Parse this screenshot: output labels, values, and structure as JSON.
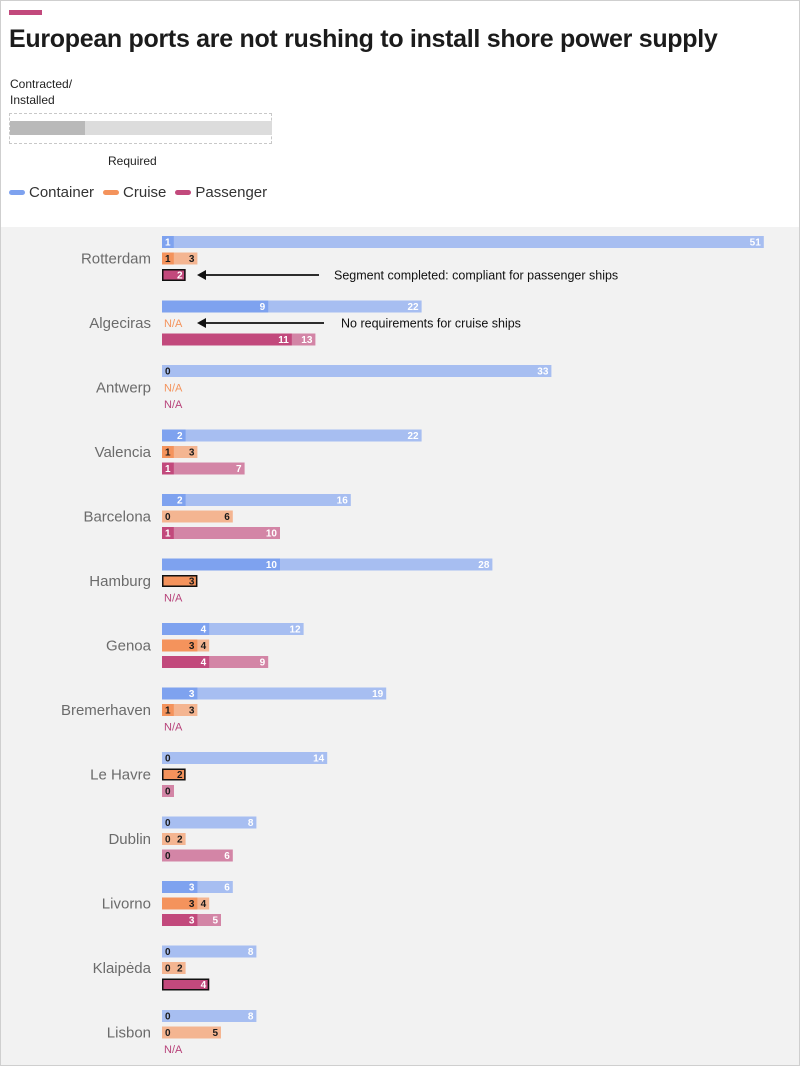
{
  "title": "European ports are not rushing to install shore power supply",
  "key": {
    "contracted_label_line1": "Contracted/",
    "contracted_label_line2": "Installed",
    "required_label": "Required"
  },
  "colors": {
    "accent": "#c2497c",
    "container": "#7ea2ef",
    "cruise": "#f4935c",
    "passenger": "#c2497c",
    "na_cruise": "#f4935c",
    "na_passenger": "#b8437a"
  },
  "annotations": [
    {
      "port": "Rotterdam",
      "series": "Passenger",
      "text": "Segment completed: compliant for passenger ships"
    },
    {
      "port": "Algeciras",
      "series": "Cruise",
      "text": "No requirements for cruise ships"
    }
  ],
  "chart_data": {
    "type": "bar",
    "title": "European ports are not rushing to install shore power supply",
    "legend_position": "top-left",
    "grid": false,
    "value_axis_range": [
      0,
      51
    ],
    "series_names": [
      "Container",
      "Cruise",
      "Passenger"
    ],
    "categories": [
      "Rotterdam",
      "Algeciras",
      "Antwerp",
      "Valencia",
      "Barcelona",
      "Hamburg",
      "Genoa",
      "Bremerhaven",
      "Le Havre",
      "Dublin",
      "Livorno",
      "Klaipėda",
      "Lisbon"
    ],
    "ports": [
      {
        "name": "Rotterdam",
        "container": {
          "installed": 1,
          "required": 51
        },
        "cruise": {
          "installed": 1,
          "required": 3
        },
        "passenger": {
          "installed": 2,
          "required": 2,
          "completed": true
        }
      },
      {
        "name": "Algeciras",
        "container": {
          "installed": 9,
          "required": 22
        },
        "cruise": {
          "na": true
        },
        "passenger": {
          "installed": 11,
          "required": 13
        }
      },
      {
        "name": "Antwerp",
        "container": {
          "installed": 0,
          "required": 33
        },
        "cruise": {
          "na": true
        },
        "passenger": {
          "na": true
        }
      },
      {
        "name": "Valencia",
        "container": {
          "installed": 2,
          "required": 22
        },
        "cruise": {
          "installed": 1,
          "required": 3
        },
        "passenger": {
          "installed": 1,
          "required": 7
        }
      },
      {
        "name": "Barcelona",
        "container": {
          "installed": 2,
          "required": 16
        },
        "cruise": {
          "installed": 0,
          "required": 6
        },
        "passenger": {
          "installed": 1,
          "required": 10
        }
      },
      {
        "name": "Hamburg",
        "container": {
          "installed": 10,
          "required": 28
        },
        "cruise": {
          "installed": 3,
          "required": 3,
          "completed": true
        },
        "passenger": {
          "na": true
        }
      },
      {
        "name": "Genoa",
        "container": {
          "installed": 4,
          "required": 12
        },
        "cruise": {
          "installed": 3,
          "required": 4
        },
        "passenger": {
          "installed": 4,
          "required": 9
        }
      },
      {
        "name": "Bremerhaven",
        "container": {
          "installed": 3,
          "required": 19
        },
        "cruise": {
          "installed": 1,
          "required": 3
        },
        "passenger": {
          "na": true
        }
      },
      {
        "name": "Le Havre",
        "container": {
          "installed": 0,
          "required": 14
        },
        "cruise": {
          "installed": 2,
          "required": 2,
          "completed": true
        },
        "passenger": {
          "installed": 0,
          "required": 0
        }
      },
      {
        "name": "Dublin",
        "container": {
          "installed": 0,
          "required": 8
        },
        "cruise": {
          "installed": 0,
          "required": 2
        },
        "passenger": {
          "installed": 0,
          "required": 6
        }
      },
      {
        "name": "Livorno",
        "container": {
          "installed": 3,
          "required": 6
        },
        "cruise": {
          "installed": 3,
          "required": 4
        },
        "passenger": {
          "installed": 3,
          "required": 5
        }
      },
      {
        "name": "Klaipėda",
        "container": {
          "installed": 0,
          "required": 8
        },
        "cruise": {
          "installed": 0,
          "required": 2
        },
        "passenger": {
          "installed": 4,
          "required": 4,
          "completed": true
        }
      },
      {
        "name": "Lisbon",
        "container": {
          "installed": 0,
          "required": 8
        },
        "cruise": {
          "installed": 0,
          "required": 5
        },
        "passenger": {
          "na": true
        }
      }
    ],
    "na_label": "N/A"
  }
}
